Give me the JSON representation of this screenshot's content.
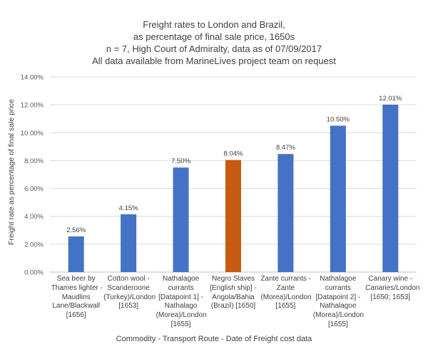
{
  "chart_data": {
    "type": "bar",
    "title_lines": [
      "Freight rates to London and Brazil,",
      "as percentage of final sale price, 1650s",
      "n = 7, High Court of Admiralty, data as of 07/09/2017",
      "All data available from MarineLives project team on request"
    ],
    "xlabel": "Commodity - Transport Route - Date of Freight cost data",
    "ylabel": "Freight rate as percentage of final sale price",
    "ylim": [
      0,
      14
    ],
    "yticks": [
      "0.00%",
      "2.00%",
      "4.00%",
      "6.00%",
      "8.00%",
      "10.00%",
      "12.00%",
      "14.00%"
    ],
    "grid": true,
    "categories": [
      "Sea beer by\nThames lighter -\nMaudlins\nLane/Blackwall\n[1656]",
      "Cotton wool -\nScanderoone\n(Turkey)/London\n[1653]",
      "Nathalagoe\ncurrants\n[Datapoint 1] -\nNathalago\n(Morea)/London\n[1655]",
      "Negro Slaves\n[English ship] -\nAngola/Bahia\n(Brazil) [1650]",
      "Zante currants -\nZante\n(Morea)/London\n[1655]",
      "Nathalagoe\ncurrants\n[Datapoint 2] -\nNathalagoe\n(Morea)/London\n[1655]",
      "Canary wine -\nCanaries/London\n[1650; 1653]"
    ],
    "values": [
      2.56,
      4.15,
      7.5,
      8.04,
      8.47,
      10.5,
      12.01
    ],
    "data_labels": [
      "2.56%",
      "4.15%",
      "7.50%",
      "8.04%",
      "8.47%",
      "10.50%",
      "12.01%"
    ],
    "colors": [
      "#4472c4",
      "#4472c4",
      "#4472c4",
      "#c55a11",
      "#4472c4",
      "#4472c4",
      "#4472c4"
    ]
  }
}
